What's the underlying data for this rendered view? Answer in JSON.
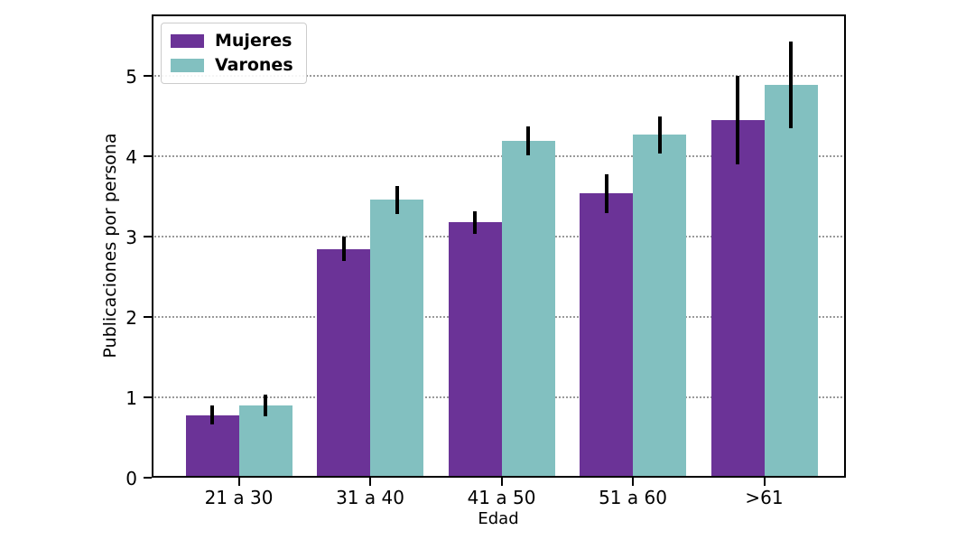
{
  "figure": {
    "background": "#ffffff"
  },
  "chart_data": {
    "type": "bar",
    "title": "",
    "xlabel": "Edad",
    "ylabel": "Publicaciones por persona",
    "categories": [
      "21 a 30",
      "31 a 40",
      "41 a 50",
      "51 a 60",
      ">61"
    ],
    "series": [
      {
        "name": "Mujeres",
        "color": "#6B3397",
        "values": [
          0.78,
          2.85,
          3.18,
          3.54,
          4.45
        ],
        "errors": [
          0.12,
          0.15,
          0.14,
          0.24,
          0.55
        ]
      },
      {
        "name": "Varones",
        "color": "#82C0C0",
        "values": [
          0.9,
          3.46,
          4.2,
          4.27,
          4.89
        ],
        "errors": [
          0.13,
          0.17,
          0.18,
          0.23,
          0.54
        ]
      }
    ],
    "yticks": [
      0,
      1,
      2,
      3,
      4,
      5
    ],
    "ylim": [
      0,
      5.77
    ],
    "grid": "horizontal-dotted",
    "gridline_color": "#9a9a9a",
    "errorbar_color": "#000000",
    "axis_color": "#000000",
    "legend_position": "upper-left"
  }
}
